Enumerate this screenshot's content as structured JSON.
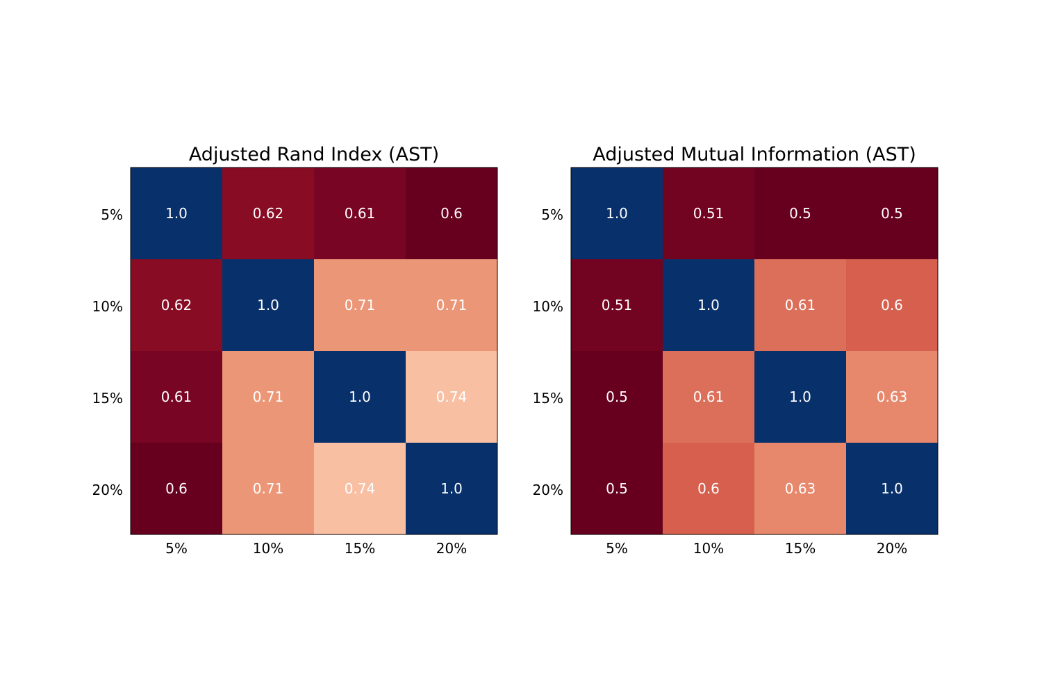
{
  "colors": {
    "diagonal": "#08306b",
    "text_on_cells": "#ffffff",
    "frame": "#000000"
  },
  "chart_data": [
    {
      "type": "heatmap",
      "title": "Adjusted Rand Index (AST)",
      "rows": [
        "5%",
        "10%",
        "15%",
        "20%"
      ],
      "columns": [
        "5%",
        "10%",
        "15%",
        "20%"
      ],
      "values": [
        [
          1.0,
          0.62,
          0.61,
          0.6
        ],
        [
          0.62,
          1.0,
          0.71,
          0.71
        ],
        [
          0.61,
          0.71,
          1.0,
          0.74
        ],
        [
          0.6,
          0.71,
          0.74,
          1.0
        ]
      ],
      "labels": [
        [
          "1.0",
          "0.62",
          "0.61",
          "0.6"
        ],
        [
          "0.62",
          "1.0",
          "0.71",
          "0.71"
        ],
        [
          "0.61",
          "0.71",
          "1.0",
          "0.74"
        ],
        [
          "0.6",
          "0.71",
          "0.74",
          "1.0"
        ]
      ],
      "cell_colors": [
        [
          "#08306b",
          "#870c24",
          "#780523",
          "#67001f"
        ],
        [
          "#870c24",
          "#08306b",
          "#eb9677",
          "#eb9677"
        ],
        [
          "#780523",
          "#eb9677",
          "#08306b",
          "#f8bfa3"
        ],
        [
          "#67001f",
          "#eb9677",
          "#f8bfa3",
          "#08306b"
        ]
      ],
      "colormap": "RdBu",
      "grid": false
    },
    {
      "type": "heatmap",
      "title": "Adjusted Mutual Information (AST)",
      "rows": [
        "5%",
        "10%",
        "15%",
        "20%"
      ],
      "columns": [
        "5%",
        "10%",
        "15%",
        "20%"
      ],
      "values": [
        [
          1.0,
          0.51,
          0.5,
          0.5
        ],
        [
          0.51,
          1.0,
          0.61,
          0.6
        ],
        [
          0.5,
          0.61,
          1.0,
          0.63
        ],
        [
          0.5,
          0.6,
          0.63,
          1.0
        ]
      ],
      "labels": [
        [
          "1.0",
          "0.51",
          "0.5",
          "0.5"
        ],
        [
          "0.51",
          "1.0",
          "0.61",
          "0.6"
        ],
        [
          "0.5",
          "0.61",
          "1.0",
          "0.63"
        ],
        [
          "0.5",
          "0.6",
          "0.63",
          "1.0"
        ]
      ],
      "cell_colors": [
        [
          "#08306b",
          "#730421",
          "#67001f",
          "#67001f"
        ],
        [
          "#730421",
          "#08306b",
          "#dc6f59",
          "#d6604d"
        ],
        [
          "#67001f",
          "#dc6f59",
          "#08306b",
          "#e7876c"
        ],
        [
          "#67001f",
          "#d6604d",
          "#e7876c",
          "#08306b"
        ]
      ],
      "colormap": "RdBu",
      "grid": false
    }
  ]
}
